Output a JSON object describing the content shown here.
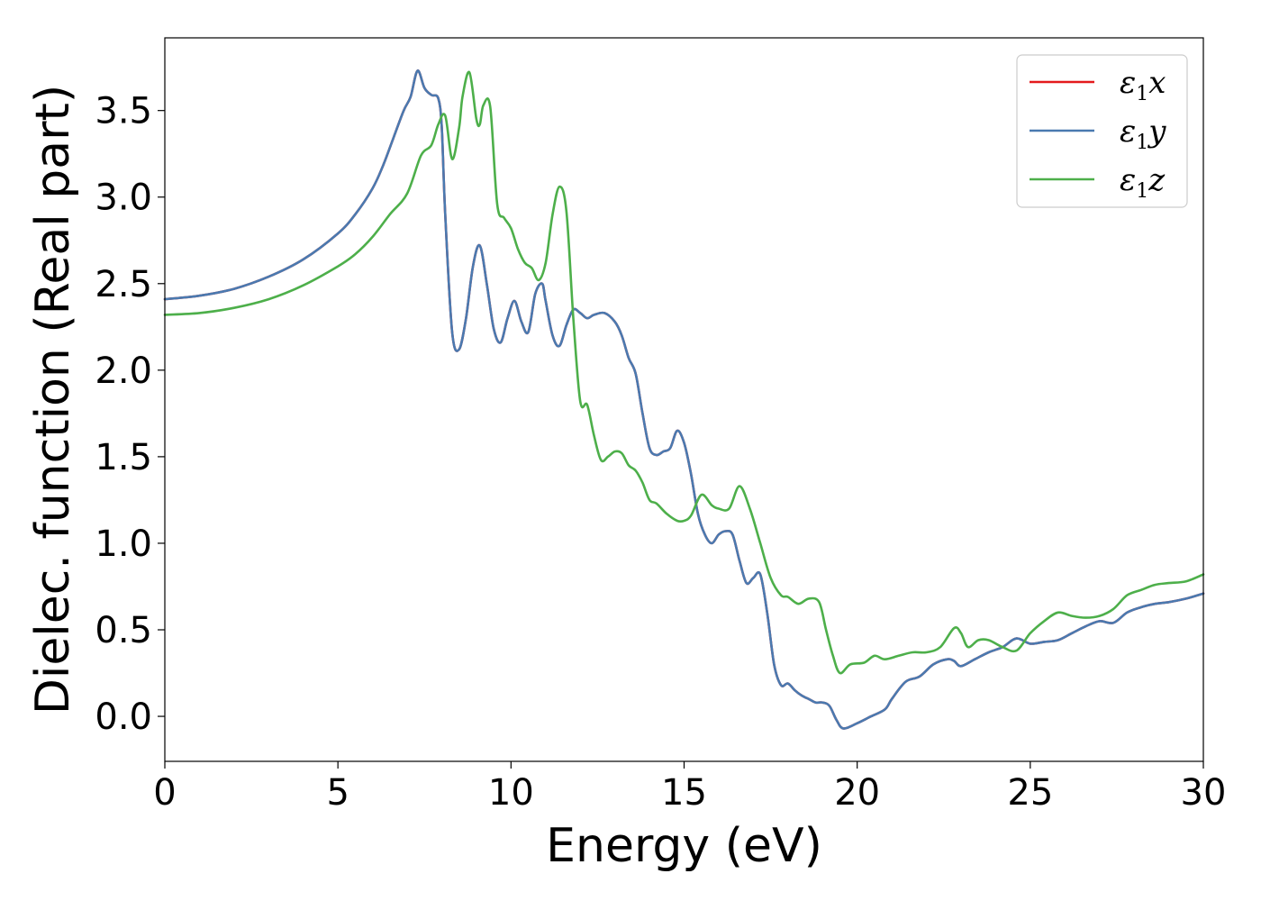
{
  "chart_data": {
    "type": "line",
    "xlabel": "Energy (eV)",
    "ylabel": "Dielec. function (Real part)",
    "xlim": [
      0,
      30
    ],
    "ylim": [
      -0.26,
      3.92
    ],
    "xticks": [
      0,
      5,
      10,
      15,
      20,
      25,
      30
    ],
    "yticks": [
      0.0,
      0.5,
      1.0,
      1.5,
      2.0,
      2.5,
      3.0,
      3.5
    ],
    "xtick_labels": [
      "0",
      "5",
      "10",
      "15",
      "20",
      "25",
      "30"
    ],
    "ytick_labels": [
      "0.0",
      "0.5",
      "1.0",
      "1.5",
      "2.0",
      "2.5",
      "3.0",
      "3.5"
    ],
    "grid": false,
    "legend_position": "top-right",
    "series": [
      {
        "name": "ε1x",
        "legend_main": "ε",
        "legend_sub": "1",
        "legend_var": "x",
        "color": "#e41a1c",
        "x": [
          0,
          1,
          2,
          3,
          4,
          5,
          5.5,
          6,
          6.3,
          6.6,
          6.9,
          7.1,
          7.3,
          7.5,
          7.7,
          7.9,
          8.0,
          8.1,
          8.3,
          8.5,
          8.7,
          8.9,
          9.1,
          9.3,
          9.5,
          9.7,
          9.9,
          10.1,
          10.3,
          10.5,
          10.7,
          10.9,
          11.0,
          11.2,
          11.4,
          11.6,
          11.8,
          12.0,
          12.2,
          12.4,
          12.7,
          13.0,
          13.2,
          13.4,
          13.6,
          13.8,
          14.0,
          14.2,
          14.4,
          14.6,
          14.8,
          15.0,
          15.2,
          15.4,
          15.6,
          15.8,
          16.0,
          16.2,
          16.4,
          16.6,
          16.8,
          17.0,
          17.2,
          17.4,
          17.6,
          17.8,
          18.0,
          18.2,
          18.4,
          18.6,
          18.8,
          19.0,
          19.2,
          19.4,
          19.6,
          20.0,
          20.4,
          20.8,
          21.0,
          21.4,
          21.8,
          22.2,
          22.6,
          22.8,
          23.0,
          23.4,
          23.8,
          24.2,
          24.6,
          25.0,
          25.4,
          25.8,
          26.2,
          26.6,
          27.0,
          27.4,
          27.8,
          28.2,
          28.6,
          29.0,
          29.5,
          30.0
        ],
        "y": [
          2.41,
          2.43,
          2.47,
          2.54,
          2.64,
          2.79,
          2.9,
          3.05,
          3.18,
          3.34,
          3.5,
          3.58,
          3.73,
          3.63,
          3.59,
          3.57,
          3.4,
          2.9,
          2.22,
          2.12,
          2.3,
          2.6,
          2.72,
          2.5,
          2.24,
          2.16,
          2.3,
          2.4,
          2.28,
          2.22,
          2.44,
          2.5,
          2.4,
          2.2,
          2.14,
          2.26,
          2.35,
          2.33,
          2.3,
          2.32,
          2.33,
          2.28,
          2.2,
          2.07,
          1.98,
          1.75,
          1.55,
          1.51,
          1.53,
          1.55,
          1.65,
          1.58,
          1.4,
          1.17,
          1.05,
          1.0,
          1.05,
          1.07,
          1.05,
          0.9,
          0.77,
          0.8,
          0.82,
          0.6,
          0.3,
          0.18,
          0.19,
          0.15,
          0.12,
          0.1,
          0.08,
          0.08,
          0.06,
          -0.02,
          -0.07,
          -0.04,
          0.0,
          0.04,
          0.1,
          0.2,
          0.23,
          0.3,
          0.33,
          0.32,
          0.29,
          0.33,
          0.37,
          0.4,
          0.45,
          0.42,
          0.43,
          0.44,
          0.48,
          0.52,
          0.55,
          0.54,
          0.6,
          0.63,
          0.65,
          0.66,
          0.68,
          0.71
        ]
      },
      {
        "name": "ε1y",
        "legend_main": "ε",
        "legend_sub": "1",
        "legend_var": "y",
        "color": "#4a7ab0",
        "x": [
          0,
          1,
          2,
          3,
          4,
          5,
          5.5,
          6,
          6.3,
          6.6,
          6.9,
          7.1,
          7.3,
          7.5,
          7.7,
          7.9,
          8.0,
          8.1,
          8.3,
          8.5,
          8.7,
          8.9,
          9.1,
          9.3,
          9.5,
          9.7,
          9.9,
          10.1,
          10.3,
          10.5,
          10.7,
          10.9,
          11.0,
          11.2,
          11.4,
          11.6,
          11.8,
          12.0,
          12.2,
          12.4,
          12.7,
          13.0,
          13.2,
          13.4,
          13.6,
          13.8,
          14.0,
          14.2,
          14.4,
          14.6,
          14.8,
          15.0,
          15.2,
          15.4,
          15.6,
          15.8,
          16.0,
          16.2,
          16.4,
          16.6,
          16.8,
          17.0,
          17.2,
          17.4,
          17.6,
          17.8,
          18.0,
          18.2,
          18.4,
          18.6,
          18.8,
          19.0,
          19.2,
          19.4,
          19.6,
          20.0,
          20.4,
          20.8,
          21.0,
          21.4,
          21.8,
          22.2,
          22.6,
          22.8,
          23.0,
          23.4,
          23.8,
          24.2,
          24.6,
          25.0,
          25.4,
          25.8,
          26.2,
          26.6,
          27.0,
          27.4,
          27.8,
          28.2,
          28.6,
          29.0,
          29.5,
          30.0
        ],
        "y": [
          2.41,
          2.43,
          2.47,
          2.54,
          2.64,
          2.79,
          2.9,
          3.05,
          3.18,
          3.34,
          3.5,
          3.58,
          3.73,
          3.63,
          3.59,
          3.57,
          3.4,
          2.9,
          2.22,
          2.12,
          2.3,
          2.6,
          2.72,
          2.5,
          2.24,
          2.16,
          2.3,
          2.4,
          2.28,
          2.22,
          2.44,
          2.5,
          2.4,
          2.2,
          2.14,
          2.26,
          2.35,
          2.33,
          2.3,
          2.32,
          2.33,
          2.28,
          2.2,
          2.07,
          1.98,
          1.75,
          1.55,
          1.51,
          1.53,
          1.55,
          1.65,
          1.58,
          1.4,
          1.17,
          1.05,
          1.0,
          1.05,
          1.07,
          1.05,
          0.9,
          0.77,
          0.8,
          0.82,
          0.6,
          0.3,
          0.18,
          0.19,
          0.15,
          0.12,
          0.1,
          0.08,
          0.08,
          0.06,
          -0.02,
          -0.07,
          -0.04,
          0.0,
          0.04,
          0.1,
          0.2,
          0.23,
          0.3,
          0.33,
          0.32,
          0.29,
          0.33,
          0.37,
          0.4,
          0.45,
          0.42,
          0.43,
          0.44,
          0.48,
          0.52,
          0.55,
          0.54,
          0.6,
          0.63,
          0.65,
          0.66,
          0.68,
          0.71
        ]
      },
      {
        "name": "ε1z",
        "legend_main": "ε",
        "legend_sub": "1",
        "legend_var": "z",
        "color": "#4daf4a",
        "x": [
          0,
          1,
          2,
          3,
          4,
          5,
          5.5,
          6,
          6.5,
          7.0,
          7.4,
          7.7,
          7.9,
          8.1,
          8.3,
          8.5,
          8.6,
          8.8,
          9.0,
          9.1,
          9.2,
          9.4,
          9.6,
          9.8,
          10.0,
          10.2,
          10.4,
          10.6,
          10.8,
          11.0,
          11.2,
          11.4,
          11.6,
          11.8,
          12.0,
          12.2,
          12.4,
          12.6,
          12.8,
          13.0,
          13.2,
          13.4,
          13.6,
          13.8,
          14.0,
          14.2,
          14.5,
          14.8,
          15.0,
          15.2,
          15.5,
          15.8,
          16.0,
          16.3,
          16.6,
          16.9,
          17.2,
          17.5,
          17.8,
          18.0,
          18.3,
          18.6,
          18.9,
          19.1,
          19.3,
          19.5,
          19.8,
          20.2,
          20.5,
          20.8,
          21.2,
          21.6,
          22.0,
          22.4,
          22.8,
          23.0,
          23.2,
          23.5,
          23.8,
          24.2,
          24.6,
          25.0,
          25.4,
          25.8,
          26.2,
          26.6,
          27.0,
          27.4,
          27.8,
          28.2,
          28.6,
          29.0,
          29.5,
          30.0
        ],
        "y": [
          2.32,
          2.33,
          2.36,
          2.41,
          2.49,
          2.6,
          2.67,
          2.77,
          2.9,
          3.02,
          3.24,
          3.3,
          3.42,
          3.47,
          3.22,
          3.4,
          3.58,
          3.72,
          3.45,
          3.42,
          3.53,
          3.52,
          2.96,
          2.88,
          2.82,
          2.7,
          2.62,
          2.59,
          2.52,
          2.62,
          2.9,
          3.06,
          2.92,
          2.3,
          1.82,
          1.8,
          1.62,
          1.48,
          1.5,
          1.53,
          1.52,
          1.45,
          1.42,
          1.35,
          1.25,
          1.23,
          1.17,
          1.13,
          1.13,
          1.16,
          1.28,
          1.22,
          1.2,
          1.2,
          1.33,
          1.2,
          1.0,
          0.8,
          0.7,
          0.69,
          0.65,
          0.68,
          0.66,
          0.5,
          0.35,
          0.25,
          0.3,
          0.31,
          0.35,
          0.33,
          0.35,
          0.37,
          0.37,
          0.4,
          0.51,
          0.48,
          0.4,
          0.44,
          0.44,
          0.4,
          0.38,
          0.48,
          0.55,
          0.6,
          0.58,
          0.57,
          0.58,
          0.62,
          0.7,
          0.73,
          0.76,
          0.77,
          0.78,
          0.82
        ]
      }
    ]
  }
}
